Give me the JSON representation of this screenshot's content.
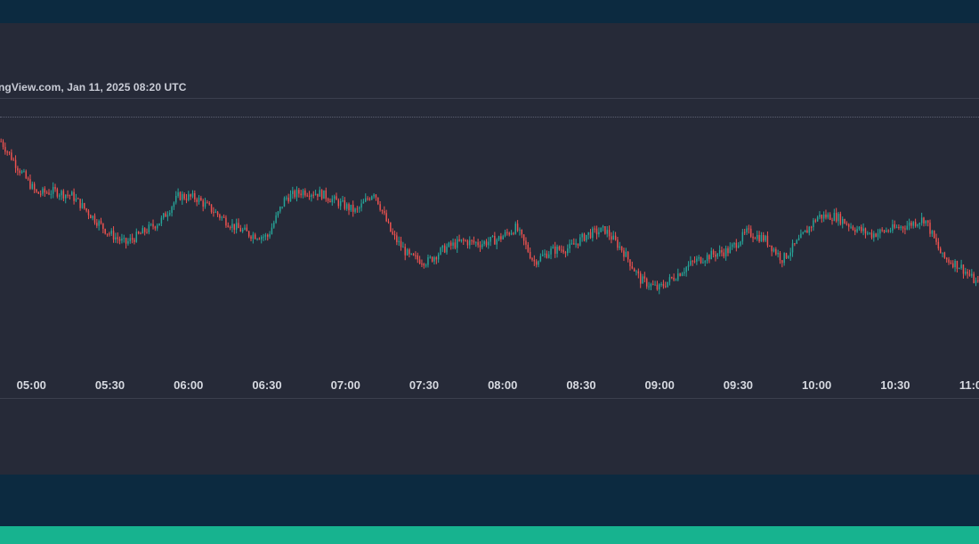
{
  "source_text": "ngView.com, Jan 11, 2025 08:20 UTC",
  "colors": {
    "background": "#0c2a40",
    "panel": "#262a38",
    "up": "#26a69a",
    "down": "#ef5350",
    "accent": "#17b38f",
    "text": "#d6d9e0"
  },
  "chart_data": {
    "type": "candlestick",
    "title": "",
    "xlabel": "",
    "ylabel": "",
    "x_tick_labels": [
      "05:00",
      "05:30",
      "06:00",
      "06:30",
      "07:00",
      "07:30",
      "08:00",
      "08:30",
      "09:00",
      "09:30",
      "10:00",
      "10:30",
      "11:00"
    ],
    "x_range": [
      "04:48",
      "11:02"
    ],
    "y_range": [
      0,
      100
    ],
    "grid": false,
    "legend": "none",
    "series": [
      {
        "trend_close_values": [
          95,
          83,
          72,
          73,
          71,
          63,
          55,
          50,
          55,
          60,
          71,
          70,
          64,
          58,
          54,
          53,
          70,
          73,
          72,
          68,
          64,
          73,
          54,
          44,
          42,
          48,
          51,
          50,
          52,
          57,
          42,
          47,
          48,
          54,
          56,
          47,
          34,
          30,
          36,
          42,
          45,
          47,
          55,
          52,
          43,
          52,
          62,
          62,
          57,
          54,
          56,
          58,
          61,
          44,
          40,
          32
        ]
      }
    ]
  }
}
